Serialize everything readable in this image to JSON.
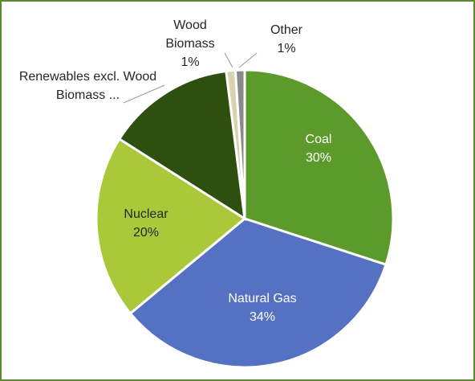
{
  "chart_data": {
    "type": "pie",
    "categories": [
      "Coal",
      "Natural Gas",
      "Nuclear",
      "Renewables excl. Wood Biomass ...",
      "Wood Biomass",
      "Other"
    ],
    "values": [
      30,
      34,
      20,
      14,
      1,
      1
    ],
    "value_labels": [
      "30%",
      "34%",
      "20%",
      null,
      "1%",
      "1%"
    ],
    "colors": [
      "#5b9a2b",
      "#5571c2",
      "#a9c93b",
      "#2d5011",
      "#d8d2b0",
      "#8a8a8a"
    ]
  }
}
